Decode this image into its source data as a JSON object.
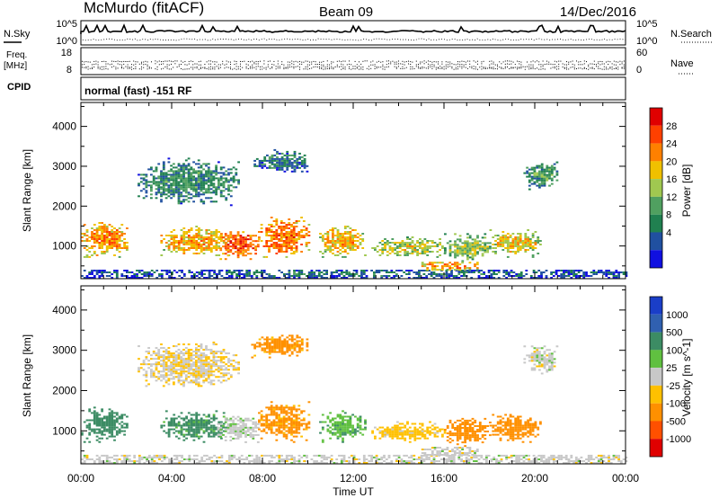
{
  "header": {
    "station": "McMurdo (fitACF)",
    "beam": "Beam 09",
    "date": "14/Dec/2016"
  },
  "strips": {
    "nsky_label": "N.Sky",
    "nsky_ticks": [
      "10^5",
      "10^0"
    ],
    "nsearch_label": "N.Search",
    "nsearch_ticks": [
      "10^5",
      "10^0"
    ],
    "freq_label_1": "Freq.",
    "freq_label_2": "[MHz]",
    "freq_ticks": [
      "18",
      "8"
    ],
    "nave_label": "Nave",
    "nave_ticks": [
      "60",
      "0"
    ],
    "cpid_label": "CPID",
    "cpid_text": "normal (fast) -151 RF"
  },
  "x_axis": {
    "label": "Time UT",
    "ticks": [
      "00:00",
      "04:00",
      "08:00",
      "12:00",
      "16:00",
      "20:00",
      "00:00"
    ]
  },
  "chart_data": [
    {
      "type": "heatmap",
      "name": "power",
      "xlabel": "Time UT",
      "ylabel": "Slant Range [km]",
      "xlim": [
        0,
        24
      ],
      "ylim": [
        180,
        4600
      ],
      "yticks": [
        "1000",
        "2000",
        "3000",
        "4000"
      ],
      "colorbar": {
        "label": "Power [dB]",
        "ticks": [
          "28",
          "24",
          "20",
          "16",
          "12",
          "8",
          "4"
        ],
        "colors": [
          "#e00000",
          "#ff4000",
          "#ff8000",
          "#f0c000",
          "#a0c850",
          "#50a060",
          "#208050",
          "#2050a0",
          "#1010e0"
        ]
      },
      "regions": [
        {
          "t0": 0.0,
          "t1": 24.0,
          "r0": 180,
          "r1": 380,
          "level": 5
        },
        {
          "t0": 0.0,
          "t1": 2.0,
          "r0": 700,
          "r1": 1600,
          "level": 22
        },
        {
          "t0": 3.5,
          "t1": 6.5,
          "r0": 700,
          "r1": 1500,
          "level": 20
        },
        {
          "t0": 6.0,
          "t1": 7.8,
          "r0": 650,
          "r1": 1400,
          "level": 26
        },
        {
          "t0": 7.8,
          "t1": 10.0,
          "r0": 700,
          "r1": 1700,
          "level": 24
        },
        {
          "t0": 10.5,
          "t1": 12.5,
          "r0": 700,
          "r1": 1500,
          "level": 20
        },
        {
          "t0": 12.8,
          "t1": 16.0,
          "r0": 700,
          "r1": 1200,
          "level": 16
        },
        {
          "t0": 16.0,
          "t1": 18.0,
          "r0": 600,
          "r1": 1300,
          "level": 14
        },
        {
          "t0": 18.0,
          "t1": 20.2,
          "r0": 700,
          "r1": 1400,
          "level": 18
        },
        {
          "t0": 15.0,
          "t1": 17.5,
          "r0": 380,
          "r1": 600,
          "level": 22
        },
        {
          "t0": 2.5,
          "t1": 7.0,
          "r0": 2000,
          "r1": 3200,
          "level": 8
        },
        {
          "t0": 19.5,
          "t1": 21.0,
          "r0": 2400,
          "r1": 3100,
          "level": 9
        },
        {
          "t0": 7.5,
          "t1": 10.0,
          "r0": 2800,
          "r1": 3400,
          "level": 6
        }
      ]
    },
    {
      "type": "heatmap",
      "name": "velocity",
      "xlabel": "Time UT",
      "ylabel": "Slant Range [km]",
      "xlim": [
        0,
        24
      ],
      "ylim": [
        180,
        4600
      ],
      "yticks": [
        "1000",
        "2000",
        "3000",
        "4000"
      ],
      "colorbar": {
        "label": "Velocity [m s^-1]",
        "ticks": [
          "1000",
          "500",
          "100",
          "25",
          "-25",
          "-100",
          "-500",
          "-1000"
        ],
        "colors": [
          "#1a3ec8",
          "#3060b0",
          "#3c8c64",
          "#60c040",
          "#c8c8c8",
          "#ffc000",
          "#ff9000",
          "#ff5000",
          "#e00000"
        ]
      },
      "regions": [
        {
          "t0": 0.0,
          "t1": 24.0,
          "r0": 180,
          "r1": 380,
          "level": 0
        },
        {
          "t0": 0.0,
          "t1": 2.0,
          "r0": 700,
          "r1": 1600,
          "level": 200
        },
        {
          "t0": 3.5,
          "t1": 6.5,
          "r0": 700,
          "r1": 1500,
          "level": 150
        },
        {
          "t0": 6.0,
          "t1": 7.8,
          "r0": 650,
          "r1": 1400,
          "level": 10
        },
        {
          "t0": 7.8,
          "t1": 10.0,
          "r0": 700,
          "r1": 1700,
          "level": -150
        },
        {
          "t0": 10.5,
          "t1": 12.5,
          "r0": 700,
          "r1": 1500,
          "level": 80
        },
        {
          "t0": 12.8,
          "t1": 16.0,
          "r0": 700,
          "r1": 1200,
          "level": -50
        },
        {
          "t0": 16.0,
          "t1": 18.0,
          "r0": 600,
          "r1": 1300,
          "level": -200
        },
        {
          "t0": 18.0,
          "t1": 20.2,
          "r0": 700,
          "r1": 1400,
          "level": -300
        },
        {
          "t0": 15.0,
          "t1": 17.5,
          "r0": 380,
          "r1": 600,
          "level": 0
        },
        {
          "t0": 2.5,
          "t1": 7.0,
          "r0": 2000,
          "r1": 3200,
          "level": -20
        },
        {
          "t0": 19.5,
          "t1": 21.0,
          "r0": 2400,
          "r1": 3100,
          "level": 0
        },
        {
          "t0": 7.5,
          "t1": 10.0,
          "r0": 2800,
          "r1": 3400,
          "level": -150
        }
      ]
    }
  ]
}
